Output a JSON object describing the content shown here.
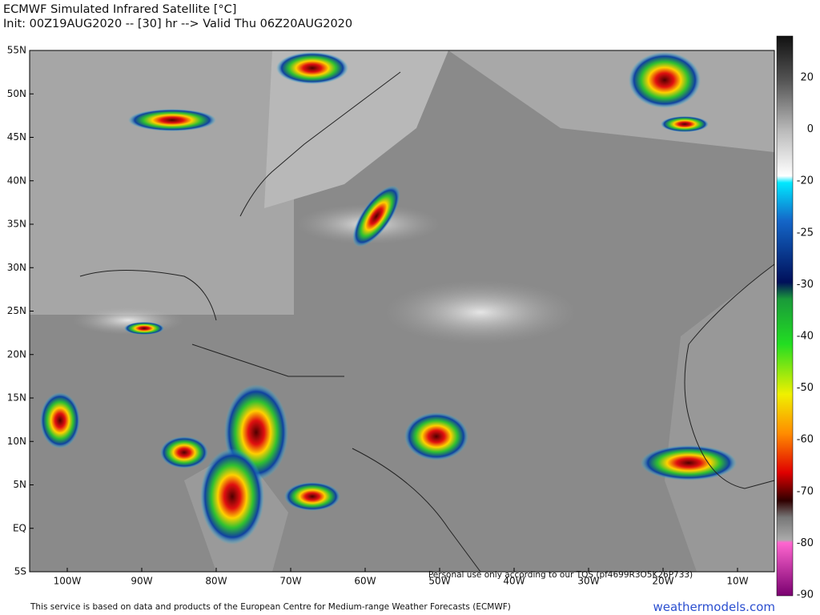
{
  "header": {
    "title": "ECMWF Simulated Infrared Satellite [°C]",
    "subtitle": "Init: 00Z19AUG2020 -- [30] hr --> Valid Thu 06Z20AUG2020"
  },
  "map": {
    "lat_labels": [
      "55N",
      "50N",
      "45N",
      "40N",
      "35N",
      "30N",
      "25N",
      "20N",
      "15N",
      "10N",
      "5N",
      "EQ",
      "5S"
    ],
    "lon_labels": [
      "100W",
      "90W",
      "80W",
      "70W",
      "60W",
      "50W",
      "40W",
      "30W",
      "20W",
      "10W"
    ],
    "notice": "Personal use only according to our TOS (pf4699R3O5K26P733)"
  },
  "colorbar": {
    "labels": [
      20,
      0,
      -20,
      -25,
      -30,
      -40,
      -50,
      -60,
      -70,
      -80,
      -90
    ]
  },
  "footer": {
    "credit": "This service is based on data and products of the European Centre for Medium-range Weather Forecasts (ECMWF)",
    "site": "weathermodels.com"
  }
}
